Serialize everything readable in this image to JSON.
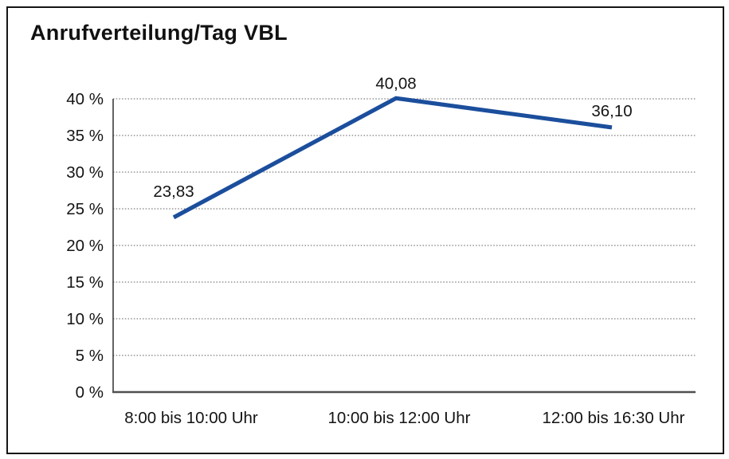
{
  "chart_data": {
    "type": "line",
    "title": "Anrufverteilung/Tag VBL",
    "categories": [
      "8:00 bis 10:00 Uhr",
      "10:00 bis 12:00 Uhr",
      "12:00 bis 16:30 Uhr"
    ],
    "values": [
      23.83,
      40.08,
      36.1
    ],
    "value_labels": [
      "23,83",
      "40,08",
      "36,10"
    ],
    "xlabel": "",
    "ylabel": "",
    "ylim": [
      0,
      40
    ],
    "ytick_step": 5,
    "ytick_labels": [
      "0 %",
      "5 %",
      "10 %",
      "15 %",
      "20 %",
      "25 %",
      "30 %",
      "35 %",
      "40 %"
    ],
    "grid": "horizontal-dotted",
    "legend": "none",
    "line_color": "#1b4e9c",
    "grid_color": "#7d7d7d",
    "axis_color": "#3c3c3c",
    "baseline_color": "#4f4f4f",
    "border_color": "#161616",
    "text_color": "#141414"
  }
}
